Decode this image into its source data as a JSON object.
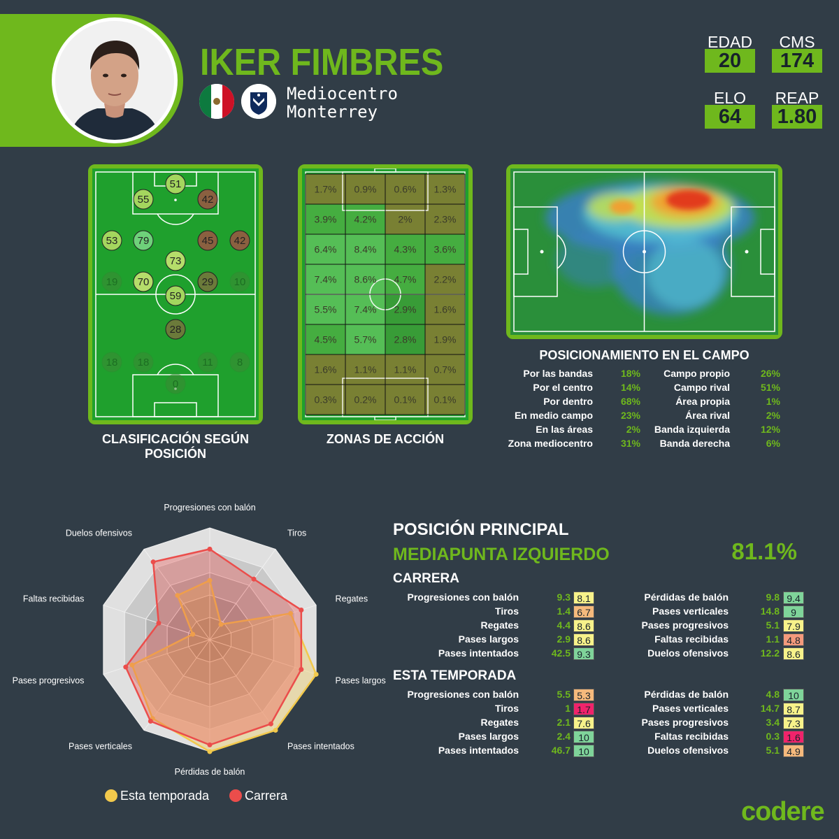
{
  "player": {
    "name": "IKER FIMBRES",
    "position": "Mediocentro",
    "club": "Monterrey",
    "stats": [
      {
        "label": "EDAD",
        "value": "20"
      },
      {
        "label": "CMS",
        "value": "174"
      },
      {
        "label": "ELO",
        "value": "64"
      },
      {
        "label": "REAP",
        "value": "1.80"
      }
    ]
  },
  "panels": {
    "classification_title": "CLASIFICACIÓN SEGÚN POSICIÓN",
    "zones_title": "ZONAS DE ACCIÓN",
    "heatmap_title": "POSICIONAMIENTO EN EL CAMPO"
  },
  "position_ratings": [
    {
      "value": "51",
      "level": 0.51
    },
    {
      "value": "55",
      "level": 0.55
    },
    {
      "value": "42",
      "level": 0.42
    },
    {
      "value": "53",
      "level": 0.53
    },
    {
      "value": "79",
      "level": 0.79
    },
    {
      "value": "45",
      "level": 0.45
    },
    {
      "value": "42",
      "level": 0.42
    },
    {
      "value": "73",
      "level": 0.73
    },
    {
      "value": "19",
      "level": 0.19
    },
    {
      "value": "70",
      "level": 0.7
    },
    {
      "value": "29",
      "level": 0.29
    },
    {
      "value": "10",
      "level": 0.1
    },
    {
      "value": "59",
      "level": 0.59
    },
    {
      "value": "28",
      "level": 0.28
    },
    {
      "value": "18",
      "level": 0.18
    },
    {
      "value": "18",
      "level": 0.18
    },
    {
      "value": "11",
      "level": 0.11
    },
    {
      "value": "8",
      "level": 0.08
    },
    {
      "value": "0",
      "level": 0.0
    }
  ],
  "action_zones": [
    [
      "1.7%",
      "0.9%",
      "0.6%",
      "1.3%"
    ],
    [
      "3.9%",
      "4.2%",
      "2%",
      "2.3%"
    ],
    [
      "6.4%",
      "8.4%",
      "4.3%",
      "3.6%"
    ],
    [
      "7.4%",
      "8.6%",
      "4.7%",
      "2.2%"
    ],
    [
      "5.5%",
      "7.4%",
      "2.9%",
      "1.6%"
    ],
    [
      "4.5%",
      "5.7%",
      "2.8%",
      "1.9%"
    ],
    [
      "1.6%",
      "1.1%",
      "1.1%",
      "0.7%"
    ],
    [
      "0.3%",
      "0.2%",
      "0.1%",
      "0.1%"
    ]
  ],
  "positioning": [
    {
      "label": "Por las bandas",
      "value": "18%",
      "label2": "Campo propio",
      "value2": "26%"
    },
    {
      "label": "Por el centro",
      "value": "14%",
      "label2": "Campo rival",
      "value2": "51%"
    },
    {
      "label": "Por dentro",
      "value": "68%",
      "label2": "Área propia",
      "value2": "1%"
    },
    {
      "label": "En medio campo",
      "value": "23%",
      "label2": "Área rival",
      "value2": "2%"
    },
    {
      "label": "En las áreas",
      "value": "2%",
      "label2": "Banda izquierda",
      "value2": "12%"
    },
    {
      "label": "Zona mediocentro",
      "value": "31%",
      "label2": "Banda derecha",
      "value2": "6%"
    }
  ],
  "main_position": {
    "title": "POSICIÓN PRINCIPAL",
    "name": "MEDIAPUNTA IZQUIERDO",
    "percent": "81.1%"
  },
  "career": {
    "title": "CARRERA",
    "left": [
      {
        "label": "Progresiones con balón",
        "value": "9.3",
        "score": "8.1",
        "color": "#f7f28a"
      },
      {
        "label": "Tiros",
        "value": "1.4",
        "score": "6.7",
        "color": "#f5b97c"
      },
      {
        "label": "Regates",
        "value": "4.4",
        "score": "8.6",
        "color": "#f7f28a"
      },
      {
        "label": "Pases largos",
        "value": "2.9",
        "score": "8.6",
        "color": "#f7f28a"
      },
      {
        "label": "Pases intentados",
        "value": "42.5",
        "score": "9.3",
        "color": "#7fd49a"
      }
    ],
    "right": [
      {
        "label": "Pérdidas de balón",
        "value": "9.8",
        "score": "9.4",
        "color": "#7fd49a"
      },
      {
        "label": "Pases verticales",
        "value": "14.8",
        "score": "9",
        "color": "#7fd49a"
      },
      {
        "label": "Pases progresivos",
        "value": "5.1",
        "score": "7.9",
        "color": "#f7f28a"
      },
      {
        "label": "Faltas recibidas",
        "value": "1.1",
        "score": "4.8",
        "color": "#f49a7c"
      },
      {
        "label": "Duelos ofensivos",
        "value": "12.2",
        "score": "8.6",
        "color": "#f7f28a"
      }
    ]
  },
  "season": {
    "title": "ESTA TEMPORADA",
    "left": [
      {
        "label": "Progresiones con balón",
        "value": "5.5",
        "score": "5.3",
        "color": "#f5b97c"
      },
      {
        "label": "Tiros",
        "value": "1",
        "score": "1.7",
        "color": "#f0236b"
      },
      {
        "label": "Regates",
        "value": "2.1",
        "score": "7.6",
        "color": "#f7f28a"
      },
      {
        "label": "Pases largos",
        "value": "2.4",
        "score": "10",
        "color": "#7fd49a"
      },
      {
        "label": "Pases intentados",
        "value": "46.7",
        "score": "10",
        "color": "#7fd49a"
      }
    ],
    "right": [
      {
        "label": "Pérdidas de balón",
        "value": "4.8",
        "score": "10",
        "color": "#7fd49a"
      },
      {
        "label": "Pases verticales",
        "value": "14.7",
        "score": "8.7",
        "color": "#f7f28a"
      },
      {
        "label": "Pases progresivos",
        "value": "3.4",
        "score": "7.3",
        "color": "#f7f28a"
      },
      {
        "label": "Faltas recibidas",
        "value": "0.3",
        "score": "1.6",
        "color": "#f0236b"
      },
      {
        "label": "Duelos ofensivos",
        "value": "5.1",
        "score": "4.9",
        "color": "#f5b97c"
      }
    ]
  },
  "chart_data": {
    "type": "radar",
    "axes": [
      "Progresiones con balón",
      "Tiros",
      "Regates",
      "Pases largos",
      "Pases intentados",
      "Pérdidas de balón",
      "Pases verticales",
      "Pases progresivos",
      "Faltas recibidas",
      "Duelos ofensivos"
    ],
    "range": [
      0,
      10
    ],
    "series": [
      {
        "name": "Esta temporada",
        "color": "#f2c94c",
        "values": [
          5.3,
          1.7,
          7.6,
          10,
          10,
          10,
          8.7,
          7.3,
          1.6,
          4.9
        ]
      },
      {
        "name": "Carrera",
        "color": "#eb4d4b",
        "values": [
          8.1,
          6.7,
          8.6,
          8.6,
          9.3,
          9.4,
          9.0,
          7.9,
          4.8,
          8.6
        ]
      }
    ]
  },
  "brand": {
    "logo": "codere",
    "accent": "#6fb81d"
  }
}
